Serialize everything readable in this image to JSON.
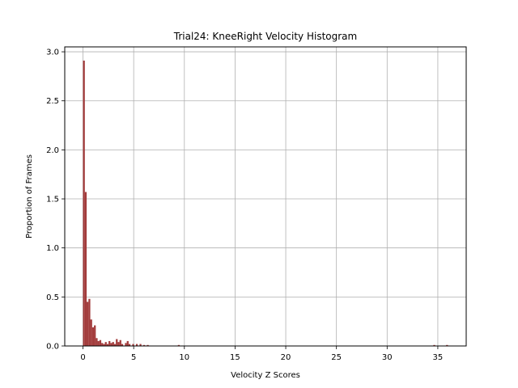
{
  "chart_data": {
    "type": "bar",
    "title": "Trial24: KneeRight Velocity Histogram",
    "xlabel": "Velocity Z Scores",
    "ylabel": "Proportion of Frames",
    "xlim": [
      -1.8,
      37.8
    ],
    "ylim": [
      0,
      3.05
    ],
    "xticks": [
      0,
      5,
      10,
      15,
      20,
      25,
      30,
      35
    ],
    "xtick_labels": [
      "0",
      "5",
      "10",
      "15",
      "20",
      "25",
      "30",
      "35"
    ],
    "yticks": [
      0,
      0.5,
      1.0,
      1.5,
      2.0,
      2.5,
      3.0
    ],
    "ytick_labels": [
      "0.0",
      "0.5",
      "1.0",
      "1.5",
      "2.0",
      "2.5",
      "3.0"
    ],
    "grid": true,
    "bar_color": "#a23b3b",
    "bin_width": 0.18,
    "bins": [
      {
        "x": 0.0,
        "value": 2.91
      },
      {
        "x": 0.18,
        "value": 1.57
      },
      {
        "x": 0.36,
        "value": 0.45
      },
      {
        "x": 0.54,
        "value": 0.48
      },
      {
        "x": 0.72,
        "value": 0.27
      },
      {
        "x": 0.9,
        "value": 0.19
      },
      {
        "x": 1.08,
        "value": 0.21
      },
      {
        "x": 1.26,
        "value": 0.08
      },
      {
        "x": 1.44,
        "value": 0.05
      },
      {
        "x": 1.62,
        "value": 0.06
      },
      {
        "x": 1.8,
        "value": 0.03
      },
      {
        "x": 1.98,
        "value": 0.02
      },
      {
        "x": 2.16,
        "value": 0.04
      },
      {
        "x": 2.34,
        "value": 0.02
      },
      {
        "x": 2.52,
        "value": 0.05
      },
      {
        "x": 2.7,
        "value": 0.03
      },
      {
        "x": 2.88,
        "value": 0.04
      },
      {
        "x": 3.06,
        "value": 0.02
      },
      {
        "x": 3.24,
        "value": 0.07
      },
      {
        "x": 3.42,
        "value": 0.04
      },
      {
        "x": 3.6,
        "value": 0.06
      },
      {
        "x": 3.78,
        "value": 0.02
      },
      {
        "x": 4.14,
        "value": 0.03
      },
      {
        "x": 4.32,
        "value": 0.05
      },
      {
        "x": 4.5,
        "value": 0.02
      },
      {
        "x": 4.86,
        "value": 0.02
      },
      {
        "x": 5.22,
        "value": 0.02
      },
      {
        "x": 5.58,
        "value": 0.02
      },
      {
        "x": 5.94,
        "value": 0.01
      },
      {
        "x": 6.3,
        "value": 0.01
      },
      {
        "x": 9.36,
        "value": 0.01
      },
      {
        "x": 34.56,
        "value": 0.01
      },
      {
        "x": 35.82,
        "value": 0.01
      }
    ]
  }
}
